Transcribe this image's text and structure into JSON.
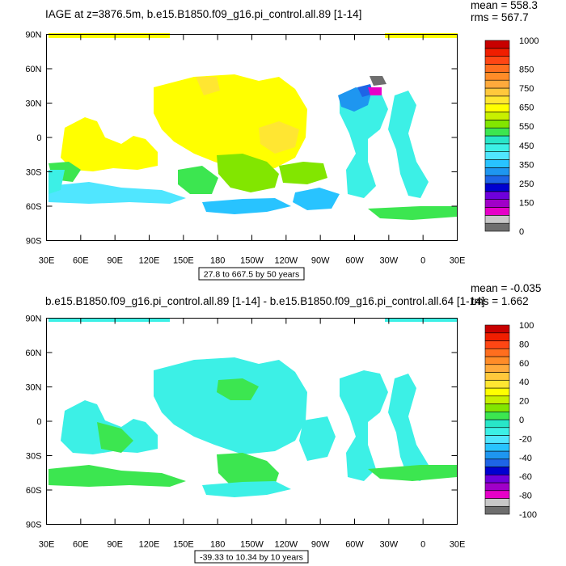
{
  "chart_data": [
    {
      "type": "heatmap",
      "title": "IAGE at z=3876.5m, b.e15.B1850.f09_g16.pi_control.all.89 [1-14]",
      "stats": [
        "mean = 558.3",
        "rms = 567.7"
      ],
      "contour_info": "27.8 to 667.5 by 50 years",
      "y_ticks": [
        "90N",
        "60N",
        "30N",
        "0",
        "30S",
        "60S",
        "90S"
      ],
      "x_ticks": [
        "30E",
        "60E",
        "90E",
        "120E",
        "150E",
        "180",
        "150W",
        "120W",
        "90W",
        "60W",
        "30W",
        "0",
        "30E"
      ],
      "colorbar": {
        "colors": [
          "#6e6e6e",
          "#c8c8c8",
          "#e600c8",
          "#a000c8",
          "#6e00dc",
          "#0000d0",
          "#1e64e6",
          "#1e96f0",
          "#28c3ff",
          "#50e6ff",
          "#3cf0e6",
          "#28e6c8",
          "#3ce650",
          "#82e600",
          "#c8f000",
          "#ffff00",
          "#ffe632",
          "#ffc83c",
          "#ffaa3c",
          "#ff8c28",
          "#ff6e1e",
          "#ff4614",
          "#f01e00",
          "#c80000"
        ],
        "labels": [
          {
            "value": 1000,
            "text": "1000"
          },
          {
            "value": 850,
            "text": "850"
          },
          {
            "value": 750,
            "text": "750"
          },
          {
            "value": 650,
            "text": "650"
          },
          {
            "value": 550,
            "text": "550"
          },
          {
            "value": 450,
            "text": "450"
          },
          {
            "value": 350,
            "text": "350"
          },
          {
            "value": 250,
            "text": "250"
          },
          {
            "value": 150,
            "text": "150"
          },
          {
            "value": 0,
            "text": "0"
          }
        ]
      }
    },
    {
      "type": "heatmap",
      "title": "b.e15.B1850.f09_g16.pi_control.all.89 [1-14] - b.e15.B1850.f09_g16.pi_control.all.64 [1-14]",
      "stats": [
        "mean = -0.035",
        "rms = 1.662"
      ],
      "contour_info": "-39.33 to 10.34 by 10 years",
      "y_ticks": [
        "90N",
        "60N",
        "30N",
        "0",
        "30S",
        "60S",
        "90S"
      ],
      "x_ticks": [
        "30E",
        "60E",
        "90E",
        "120E",
        "150E",
        "180",
        "150W",
        "120W",
        "90W",
        "60W",
        "30W",
        "0",
        "30E"
      ],
      "colorbar": {
        "colors": [
          "#6e6e6e",
          "#c8c8c8",
          "#e600c8",
          "#a000c8",
          "#6e00dc",
          "#0000d0",
          "#1e64e6",
          "#1e96f0",
          "#28c3ff",
          "#50e6ff",
          "#3cf0e6",
          "#28e6c8",
          "#3ce650",
          "#82e600",
          "#c8f000",
          "#ffff00",
          "#ffe632",
          "#ffc83c",
          "#ffaa3c",
          "#ff8c28",
          "#ff6e1e",
          "#ff4614",
          "#f01e00",
          "#c80000"
        ],
        "labels": [
          {
            "value": 100,
            "text": "100"
          },
          {
            "value": 80,
            "text": "80"
          },
          {
            "value": 60,
            "text": "60"
          },
          {
            "value": 40,
            "text": "40"
          },
          {
            "value": 20,
            "text": "20"
          },
          {
            "value": 0,
            "text": "0"
          },
          {
            "value": -20,
            "text": "-20"
          },
          {
            "value": -40,
            "text": "-40"
          },
          {
            "value": -60,
            "text": "-60"
          },
          {
            "value": -80,
            "text": "-80"
          },
          {
            "value": -100,
            "text": "-100"
          }
        ]
      }
    }
  ]
}
